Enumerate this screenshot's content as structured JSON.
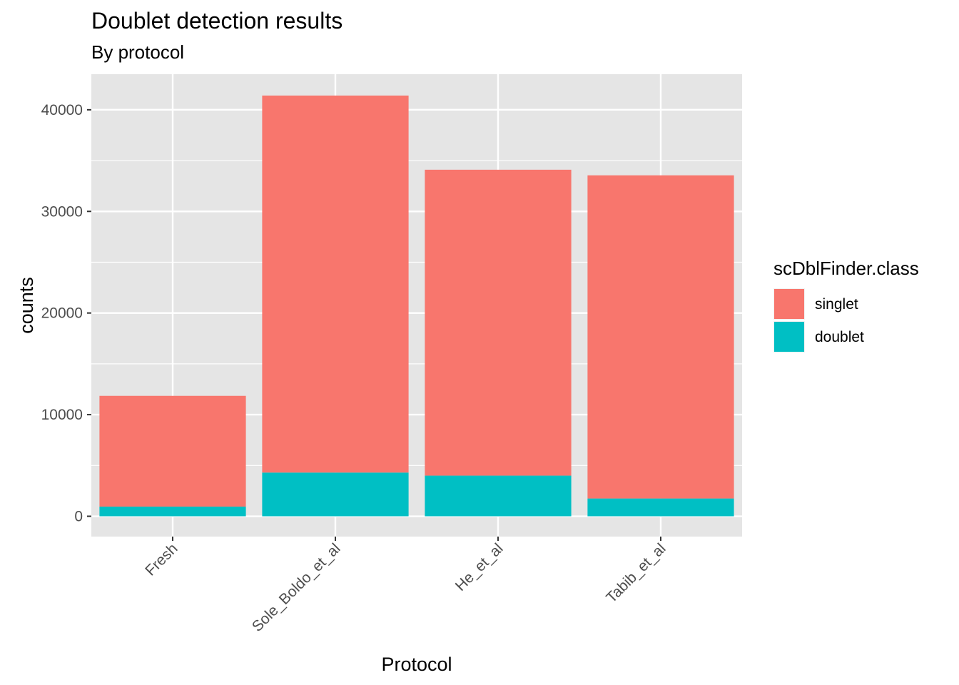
{
  "chart_data": {
    "type": "bar",
    "stacked": true,
    "title": "Doublet detection results",
    "subtitle": "By protocol",
    "xlabel": "Protocol",
    "ylabel": "counts",
    "categories": [
      "Fresh",
      "Sole_Boldo_et_al",
      "He_et_al",
      "Tabib_et_al"
    ],
    "series": [
      {
        "name": "singlet",
        "color": "#F8766D",
        "values": [
          10900,
          37100,
          30100,
          31800
        ]
      },
      {
        "name": "doublet",
        "color": "#00BFC4",
        "values": [
          950,
          4300,
          4000,
          1750
        ]
      }
    ],
    "ylim": [
      -2000,
      43500
    ],
    "yticks": [
      0,
      10000,
      20000,
      30000,
      40000
    ],
    "ytick_labels": [
      "0",
      "10000",
      "20000",
      "30000",
      "40000"
    ],
    "legend": {
      "title": "scDblFinder.class",
      "position": "right"
    },
    "grid": true,
    "colors": {
      "panel": "#E5E5E5",
      "grid": "#FFFFFF",
      "singlet": "#F8766D",
      "doublet": "#00BFC4"
    }
  }
}
